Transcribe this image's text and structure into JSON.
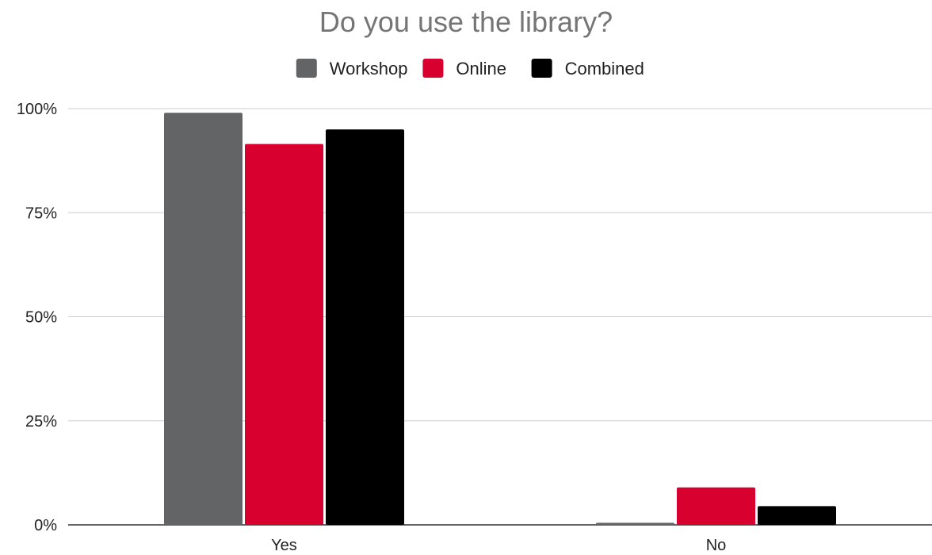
{
  "chart_data": {
    "type": "bar",
    "title": "Do you use the library?",
    "xlabel": "",
    "ylabel": "",
    "categories": [
      "Yes",
      "No"
    ],
    "series": [
      {
        "name": "Workshop",
        "color": "#636466",
        "values": [
          0.99,
          0.005
        ]
      },
      {
        "name": "Online",
        "color": "#d7002f",
        "values": [
          0.915,
          0.09
        ]
      },
      {
        "name": "Combined",
        "color": "#000000",
        "values": [
          0.95,
          0.045
        ]
      }
    ],
    "ylim": [
      0,
      1
    ],
    "yticks": [
      {
        "value": 0,
        "label": "0%"
      },
      {
        "value": 0.25,
        "label": "25%"
      },
      {
        "value": 0.5,
        "label": "50%"
      },
      {
        "value": 0.75,
        "label": "75%"
      },
      {
        "value": 1,
        "label": "100%"
      }
    ],
    "grid": true,
    "legend_position": "top"
  }
}
